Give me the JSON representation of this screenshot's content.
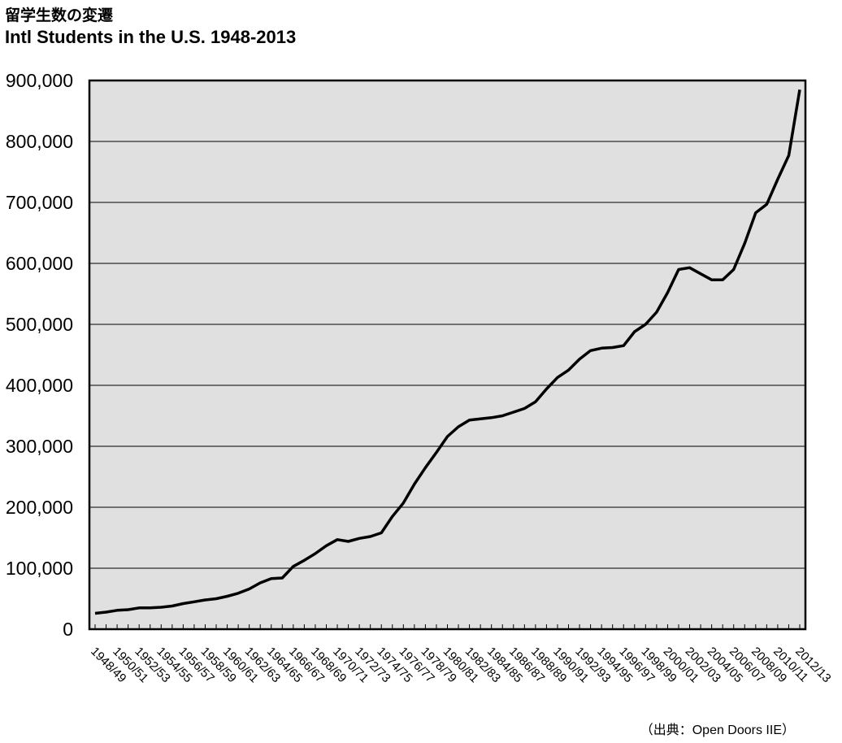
{
  "title_ja": "留学生数の変遷",
  "title_en": "Intl Students in the U.S. 1948-2013",
  "source": "（出典：Open Doors IIE）",
  "colors": {
    "plot_background": "#e0e0e0",
    "line": "#000000",
    "grid": "#000000"
  },
  "chart_data": {
    "type": "line",
    "title": "Intl Students in the U.S. 1948-2013",
    "xlabel": "",
    "ylabel": "",
    "ylim": [
      0,
      900000
    ],
    "yticks": [
      0,
      100000,
      200000,
      300000,
      400000,
      500000,
      600000,
      700000,
      800000,
      900000
    ],
    "ytick_labels": [
      "0",
      "100,000",
      "200,000",
      "300,000",
      "400,000",
      "500,000",
      "600,000",
      "700,000",
      "800,000",
      "900,000"
    ],
    "grid": true,
    "legend": "none",
    "xtick_labels": [
      "1948/49",
      "1950/51",
      "1952/53",
      "1954/55",
      "1956/57",
      "1958/59",
      "1960/61",
      "1962/63",
      "1964/65",
      "1966/67",
      "1968/69",
      "1970/71",
      "1972/73",
      "1974/75",
      "1976/77",
      "1978/79",
      "1980/81",
      "1982/83",
      "1984/85",
      "1986/87",
      "1988/89",
      "1990/91",
      "1992/93",
      "1994/95",
      "1996/97",
      "1998/99",
      "2000/01",
      "2002/03",
      "2004/05",
      "2006/07",
      "2008/09",
      "2010/11",
      "2012/13"
    ],
    "x": [
      "1948/49",
      "1949/50",
      "1950/51",
      "1951/52",
      "1952/53",
      "1953/54",
      "1954/55",
      "1955/56",
      "1956/57",
      "1957/58",
      "1958/59",
      "1959/60",
      "1960/61",
      "1961/62",
      "1962/63",
      "1963/64",
      "1964/65",
      "1965/66",
      "1966/67",
      "1967/68",
      "1968/69",
      "1969/70",
      "1970/71",
      "1971/72",
      "1972/73",
      "1973/74",
      "1974/75",
      "1975/76",
      "1976/77",
      "1977/78",
      "1978/79",
      "1979/80",
      "1980/81",
      "1981/82",
      "1982/83",
      "1983/84",
      "1984/85",
      "1985/86",
      "1986/87",
      "1987/88",
      "1988/89",
      "1989/90",
      "1990/91",
      "1991/92",
      "1992/93",
      "1993/94",
      "1994/95",
      "1995/96",
      "1996/97",
      "1997/98",
      "1998/99",
      "1999/00",
      "2000/01",
      "2001/02",
      "2002/03",
      "2003/04",
      "2004/05",
      "2005/06",
      "2006/07",
      "2007/08",
      "2008/09",
      "2009/10",
      "2010/11",
      "2011/12",
      "2012/13"
    ],
    "series": [
      {
        "values": [
          26000,
          28000,
          31000,
          32000,
          35000,
          35000,
          36000,
          38000,
          42000,
          45000,
          48000,
          50000,
          54000,
          59000,
          66000,
          76000,
          83000,
          84000,
          103000,
          113000,
          124000,
          137000,
          147000,
          144000,
          149000,
          152000,
          158000,
          185000,
          207000,
          238000,
          265000,
          290000,
          316000,
          332000,
          343000,
          345000,
          347000,
          350000,
          356000,
          362000,
          373000,
          394000,
          413000,
          425000,
          443000,
          457000,
          461000,
          462000,
          465000,
          488000,
          500000,
          520000,
          552000,
          590000,
          593000,
          583000,
          573000,
          573000,
          590000,
          633000,
          683000,
          697000,
          738000,
          777000,
          885000
        ]
      }
    ]
  }
}
